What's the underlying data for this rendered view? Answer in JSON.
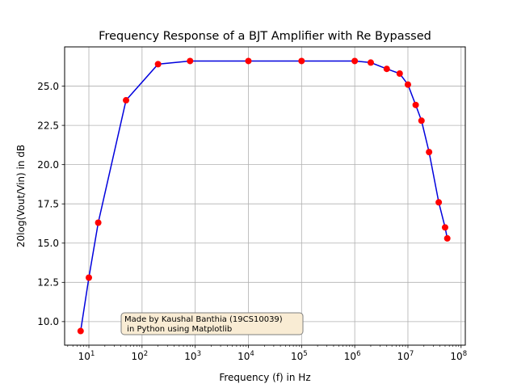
{
  "chart_data": {
    "type": "line",
    "title": "Frequency Response of a BJT Amplifier with Re Bypassed",
    "xlabel": "Frequency (f) in Hz",
    "ylabel": "20log(Vout/Vin) in dB",
    "x_scale": "log",
    "xlim": [
      3.5,
      120000000
    ],
    "ylim": [
      8.5,
      27.5
    ],
    "grid": true,
    "x_tick_values": [
      10,
      100,
      1000,
      10000,
      100000,
      1000000,
      10000000,
      100000000
    ],
    "x_tick_exponents": [
      "1",
      "2",
      "3",
      "4",
      "5",
      "6",
      "7",
      "8"
    ],
    "x_tick_base": "10",
    "y_ticks": [
      10.0,
      12.5,
      15.0,
      17.5,
      20.0,
      22.5,
      25.0
    ],
    "y_tick_labels": [
      "10.0",
      "12.5",
      "15.0",
      "17.5",
      "20.0",
      "22.5",
      "25.0"
    ],
    "line_color": "#0000dd",
    "marker_color": "#ff0000",
    "series": [
      {
        "x": [
          7,
          10,
          15,
          50,
          200,
          800,
          10000,
          100000,
          1000000,
          2000000,
          4000000,
          7000000,
          10000000,
          14000000,
          18000000,
          25000000,
          38000000,
          50000000,
          55000000
        ],
        "y": [
          9.4,
          12.8,
          16.3,
          24.1,
          26.4,
          26.6,
          26.6,
          26.6,
          26.6,
          26.5,
          26.1,
          25.8,
          25.1,
          23.8,
          22.8,
          20.8,
          17.6,
          16.0,
          15.3
        ]
      }
    ],
    "annotation": "Made by Kaushal Banthia (19CS10039)\n in Python using Matplotlib",
    "annotation_box_color": "#f9ecd4",
    "annotation_border_color": "#7f7f7f"
  }
}
